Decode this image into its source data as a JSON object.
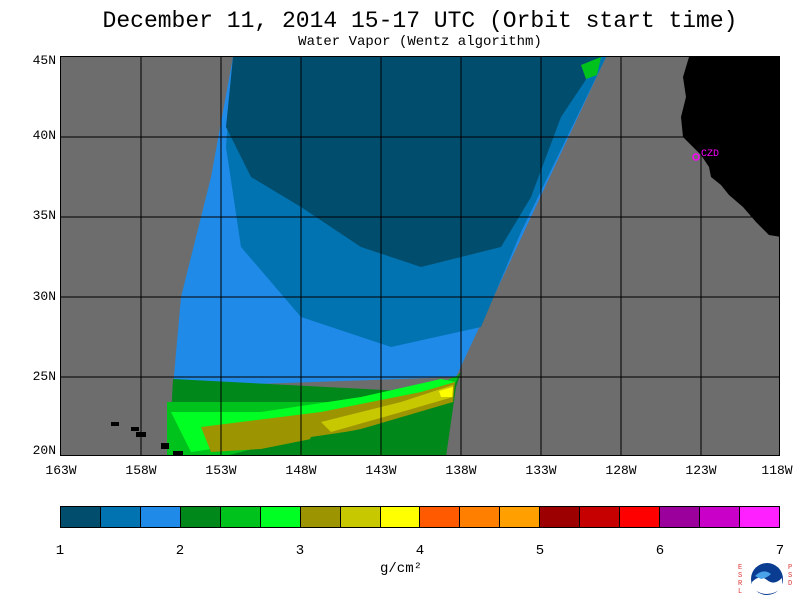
{
  "title": "December 11, 2014  15-17 UTC  (Orbit start time)",
  "subtitle": "Water Vapor (Wentz algorithm)",
  "lat_labels": [
    "45N",
    "40N",
    "35N",
    "30N",
    "25N",
    "20N"
  ],
  "lon_labels": [
    "163W",
    "158W",
    "153W",
    "148W",
    "143W",
    "138W",
    "133W",
    "128W",
    "123W",
    "118W"
  ],
  "colorbar": {
    "colors": [
      "#004d6e",
      "#0073b0",
      "#1f8ae8",
      "#00881a",
      "#00c21c",
      "#00ff22",
      "#9c9400",
      "#c8c800",
      "#ffff00",
      "#ff5a00",
      "#ff7f00",
      "#ff9f00",
      "#9c0000",
      "#c60000",
      "#ff0000",
      "#9c009c",
      "#c800c8",
      "#ff20ff"
    ],
    "tick_labels": [
      "1",
      "2",
      "3",
      "4",
      "5",
      "6",
      "7"
    ],
    "unit": "g/cm²"
  },
  "station_label": "CZD",
  "logo": {
    "left_letters": "ESRL",
    "right_letters": "PSD",
    "text": "NOAA"
  },
  "colors": {
    "land": "#000000",
    "no_data": "#6e6d6d",
    "station": "#ff00ff"
  }
}
